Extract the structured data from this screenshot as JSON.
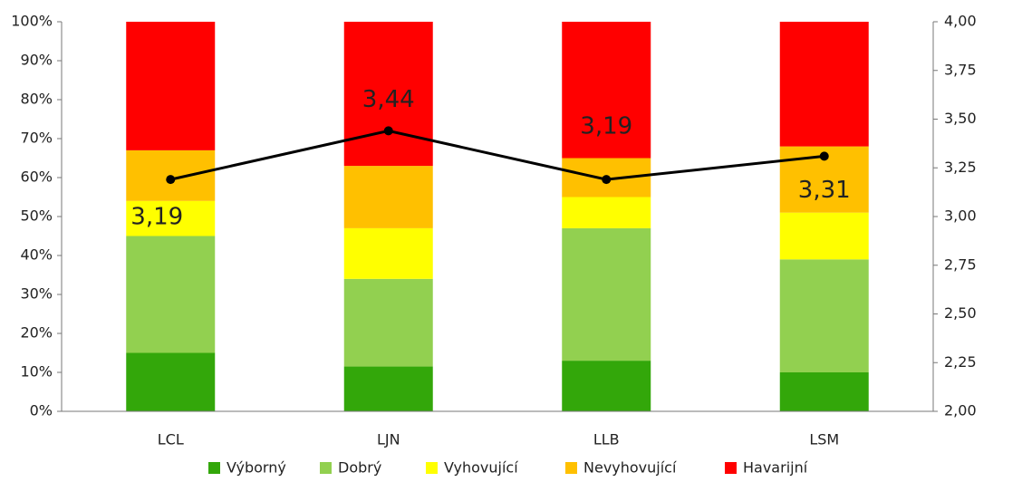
{
  "chart_data": {
    "type": "bar",
    "stacked": true,
    "categories": [
      "LCL",
      "LJN",
      "LLB",
      "LSM"
    ],
    "series": [
      {
        "name": "Výborný",
        "color": "#33a70a",
        "values": [
          15,
          11.5,
          13,
          10
        ]
      },
      {
        "name": "Dobrý",
        "color": "#92d050",
        "values": [
          30,
          22.5,
          34,
          29
        ]
      },
      {
        "name": "Vyhovující",
        "color": "#ffff00",
        "values": [
          9,
          13,
          8,
          12
        ]
      },
      {
        "name": "Nevyhovující",
        "color": "#ffc000",
        "values": [
          13,
          16,
          10,
          17
        ]
      },
      {
        "name": "Havarijní",
        "color": "#ff0000",
        "values": [
          33,
          37,
          35,
          32
        ]
      },
      {
        "type": "line",
        "axis": "y2",
        "color": "#000000",
        "values": [
          3.19,
          3.44,
          3.19,
          3.31
        ],
        "value_labels": [
          "3,19",
          "3,44",
          "3,19",
          "3,31"
        ]
      }
    ],
    "ylim": [
      0,
      100
    ],
    "yticks": [
      {
        "value": 0,
        "label": "0%"
      },
      {
        "value": 10,
        "label": "10%"
      },
      {
        "value": 20,
        "label": "20%"
      },
      {
        "value": 30,
        "label": "30%"
      },
      {
        "value": 40,
        "label": "40%"
      },
      {
        "value": 50,
        "label": "50%"
      },
      {
        "value": 60,
        "label": "60%"
      },
      {
        "value": 70,
        "label": "70%"
      },
      {
        "value": 80,
        "label": "80%"
      },
      {
        "value": 90,
        "label": "90%"
      },
      {
        "value": 100,
        "label": "100%"
      }
    ],
    "y2lim": [
      2,
      4
    ],
    "y2ticks": [
      {
        "value": 2,
        "label": "2,00"
      },
      {
        "value": 2.25,
        "label": "2,25"
      },
      {
        "value": 2.5,
        "label": "2,50"
      },
      {
        "value": 2.75,
        "label": "2,75"
      },
      {
        "value": 3,
        "label": "3,00"
      },
      {
        "value": 3.25,
        "label": "3,25"
      },
      {
        "value": 3.5,
        "label": "3,50"
      },
      {
        "value": 3.75,
        "label": "3,75"
      },
      {
        "value": 4,
        "label": "4,00"
      }
    ],
    "legend": "bottom"
  }
}
